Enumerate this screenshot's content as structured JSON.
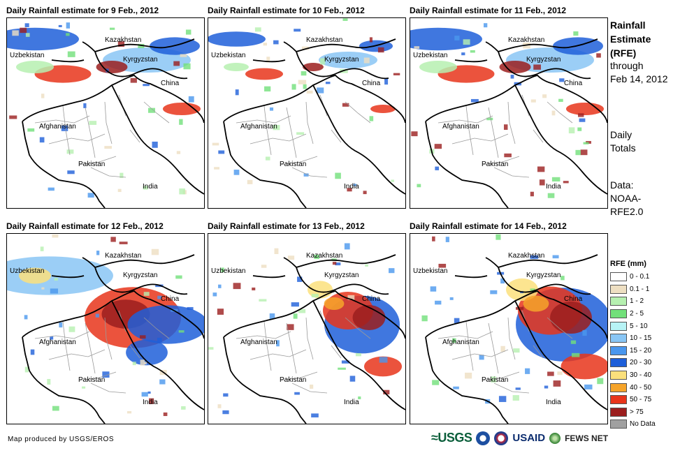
{
  "panels": [
    {
      "title": "Daily Rainfall estimate for 9 Feb., 2012",
      "rain_level": "moderate",
      "focus": "north"
    },
    {
      "title": "Daily Rainfall estimate for 10 Feb., 2012",
      "rain_level": "light",
      "focus": "north"
    },
    {
      "title": "Daily Rainfall estimate for 11 Feb., 2012",
      "rain_level": "moderate",
      "focus": "north"
    },
    {
      "title": "Daily Rainfall estimate for 12 Feb., 2012",
      "rain_level": "heavy",
      "focus": "center"
    },
    {
      "title": "Daily Rainfall estimate for 13 Feb., 2012",
      "rain_level": "moderate",
      "focus": "east"
    },
    {
      "title": "Daily Rainfall estimate for 14 Feb., 2012",
      "rain_level": "heavy",
      "focus": "east"
    }
  ],
  "map_labels": {
    "kazakhstan": "Kazakhstan",
    "uzbekistan": "Uzbekistan",
    "kyrgyzstan": "Kyrgyzstan",
    "china": "China",
    "afghanistan": "Afghanistan",
    "pakistan": "Pakistan",
    "india": "India"
  },
  "side": {
    "title_lines": [
      "Rainfall",
      "Estimate",
      "(RFE)"
    ],
    "through_lines": [
      "through",
      "Feb 14, 2012"
    ],
    "totals_lines": [
      "Daily",
      "Totals"
    ],
    "data_lines": [
      "Data:",
      "NOAA-",
      "RFE2.0"
    ]
  },
  "legend": {
    "title": "RFE (mm)",
    "items": [
      {
        "label": "0 - 0.1",
        "color": "#ffffff"
      },
      {
        "label": "0.1 - 1",
        "color": "#eedfc2"
      },
      {
        "label": "1 - 2",
        "color": "#b6f0b0"
      },
      {
        "label": "2 - 5",
        "color": "#72e07a"
      },
      {
        "label": "5 - 10",
        "color": "#b7f3f5"
      },
      {
        "label": "10 - 15",
        "color": "#89c6f5"
      },
      {
        "label": "15 - 20",
        "color": "#4a97ee"
      },
      {
        "label": "20 - 30",
        "color": "#1e5fd9"
      },
      {
        "label": "30 - 40",
        "color": "#fbe07c"
      },
      {
        "label": "40 - 50",
        "color": "#f6a42a"
      },
      {
        "label": "50 - 75",
        "color": "#e8351b"
      },
      {
        "label": "> 75",
        "color": "#9b1e1e"
      },
      {
        "label": "No Data",
        "color": "#a0a0a0"
      }
    ]
  },
  "footer": {
    "credit": "Map produced by USGS/EROS",
    "usgs": "≈USGS",
    "usaid": "USAID",
    "fews": "FEWS NET"
  }
}
